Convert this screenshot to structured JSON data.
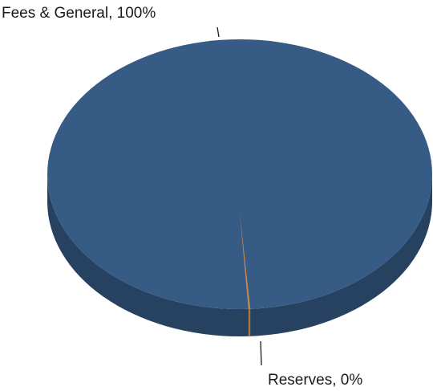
{
  "chart_data": {
    "type": "pie",
    "style": "3d",
    "title": "",
    "categories": [
      "Fees & General",
      "Reserves"
    ],
    "values": [
      100,
      0
    ],
    "labels": [
      "Fees & General, 100%",
      "Reserves, 0%"
    ],
    "colors": [
      "#365b85",
      "#c88a4a"
    ],
    "legend": "none"
  }
}
